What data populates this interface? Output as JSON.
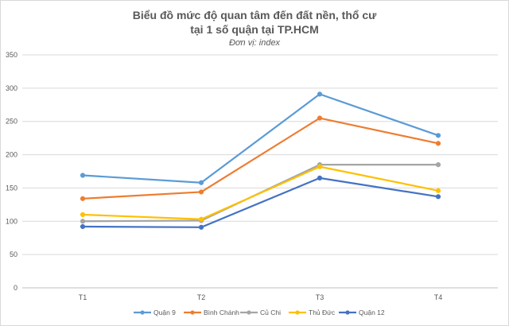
{
  "chart_data": {
    "type": "line",
    "title_line1": "Biểu đồ mức độ quan tâm đến đất nền, thổ cư",
    "title_line2": "tại 1 số quận tại TP.HCM",
    "subtitle": "Đơn vị: index",
    "categories": [
      "T1",
      "T2",
      "T3",
      "T4"
    ],
    "ylim": [
      0,
      350
    ],
    "yticks": [
      0,
      50,
      100,
      150,
      200,
      250,
      300,
      350
    ],
    "grid": true,
    "legend_position": "bottom",
    "series": [
      {
        "name": "Quận 9",
        "color": "#5B9BD5",
        "values": [
          169,
          158,
          291,
          229
        ]
      },
      {
        "name": "Bình Chánh",
        "color": "#ED7D31",
        "values": [
          134,
          144,
          255,
          217
        ]
      },
      {
        "name": "Củ Chi",
        "color": "#A5A5A5",
        "values": [
          100,
          101,
          185,
          185
        ]
      },
      {
        "name": "Thủ Đức",
        "color": "#FFC000",
        "values": [
          110,
          103,
          182,
          146
        ]
      },
      {
        "name": "Quận 12",
        "color": "#4472C4",
        "values": [
          92,
          91,
          165,
          137
        ]
      }
    ]
  }
}
